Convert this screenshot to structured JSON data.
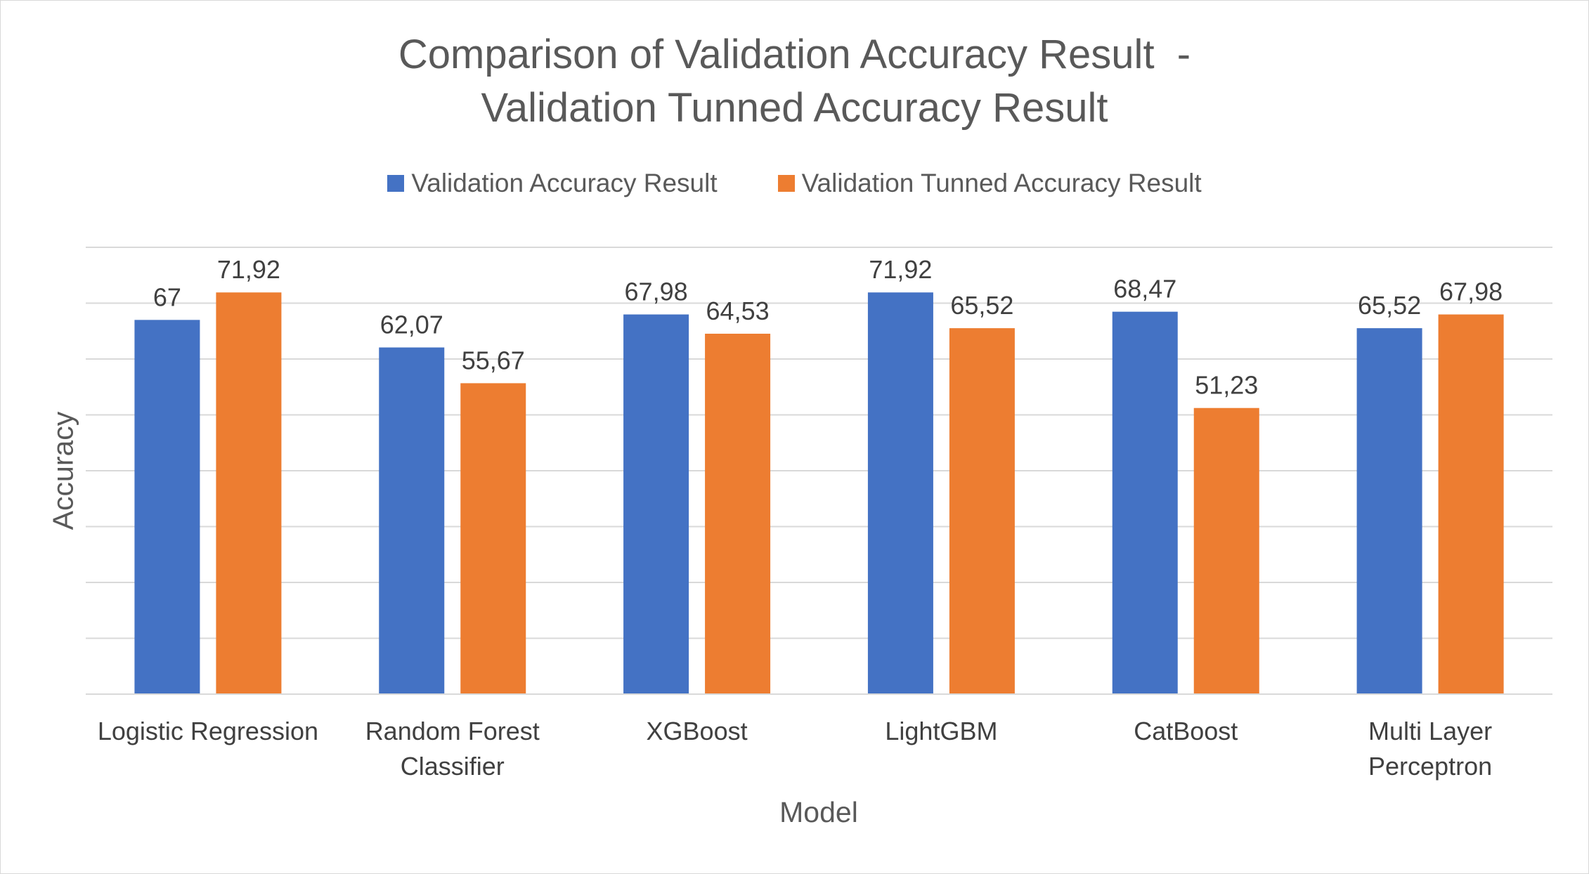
{
  "chart_data": {
    "type": "bar",
    "title_lines": [
      "Comparison of Validation Accuracy Result  -",
      "Validation Tunned Accuracy Result"
    ],
    "xlabel": "Model",
    "ylabel": "Accuracy",
    "categories": [
      [
        "Logistic Regression"
      ],
      [
        "Random Forest",
        "Classifier"
      ],
      [
        "XGBoost"
      ],
      [
        "LightGBM"
      ],
      [
        "CatBoost"
      ],
      [
        "Multi Layer",
        "Perceptron"
      ]
    ],
    "series": [
      {
        "name": "Validation Accuracy Result",
        "color": "#4472c4",
        "values": [
          67,
          62.07,
          67.98,
          71.92,
          68.47,
          65.52
        ],
        "labels": [
          "67",
          "62,07",
          "67,98",
          "71,92",
          "68,47",
          "65,52"
        ]
      },
      {
        "name": "Validation Tunned Accuracy Result",
        "color": "#ed7d31",
        "values": [
          71.92,
          55.67,
          64.53,
          65.52,
          51.23,
          67.98
        ],
        "labels": [
          "71,92",
          "55,67",
          "64,53",
          "65,52",
          "51,23",
          "67,98"
        ]
      }
    ],
    "ylim": [
      0,
      80
    ],
    "grid": true,
    "legend_position": "top-center",
    "y_tick_labels_shown": false
  }
}
